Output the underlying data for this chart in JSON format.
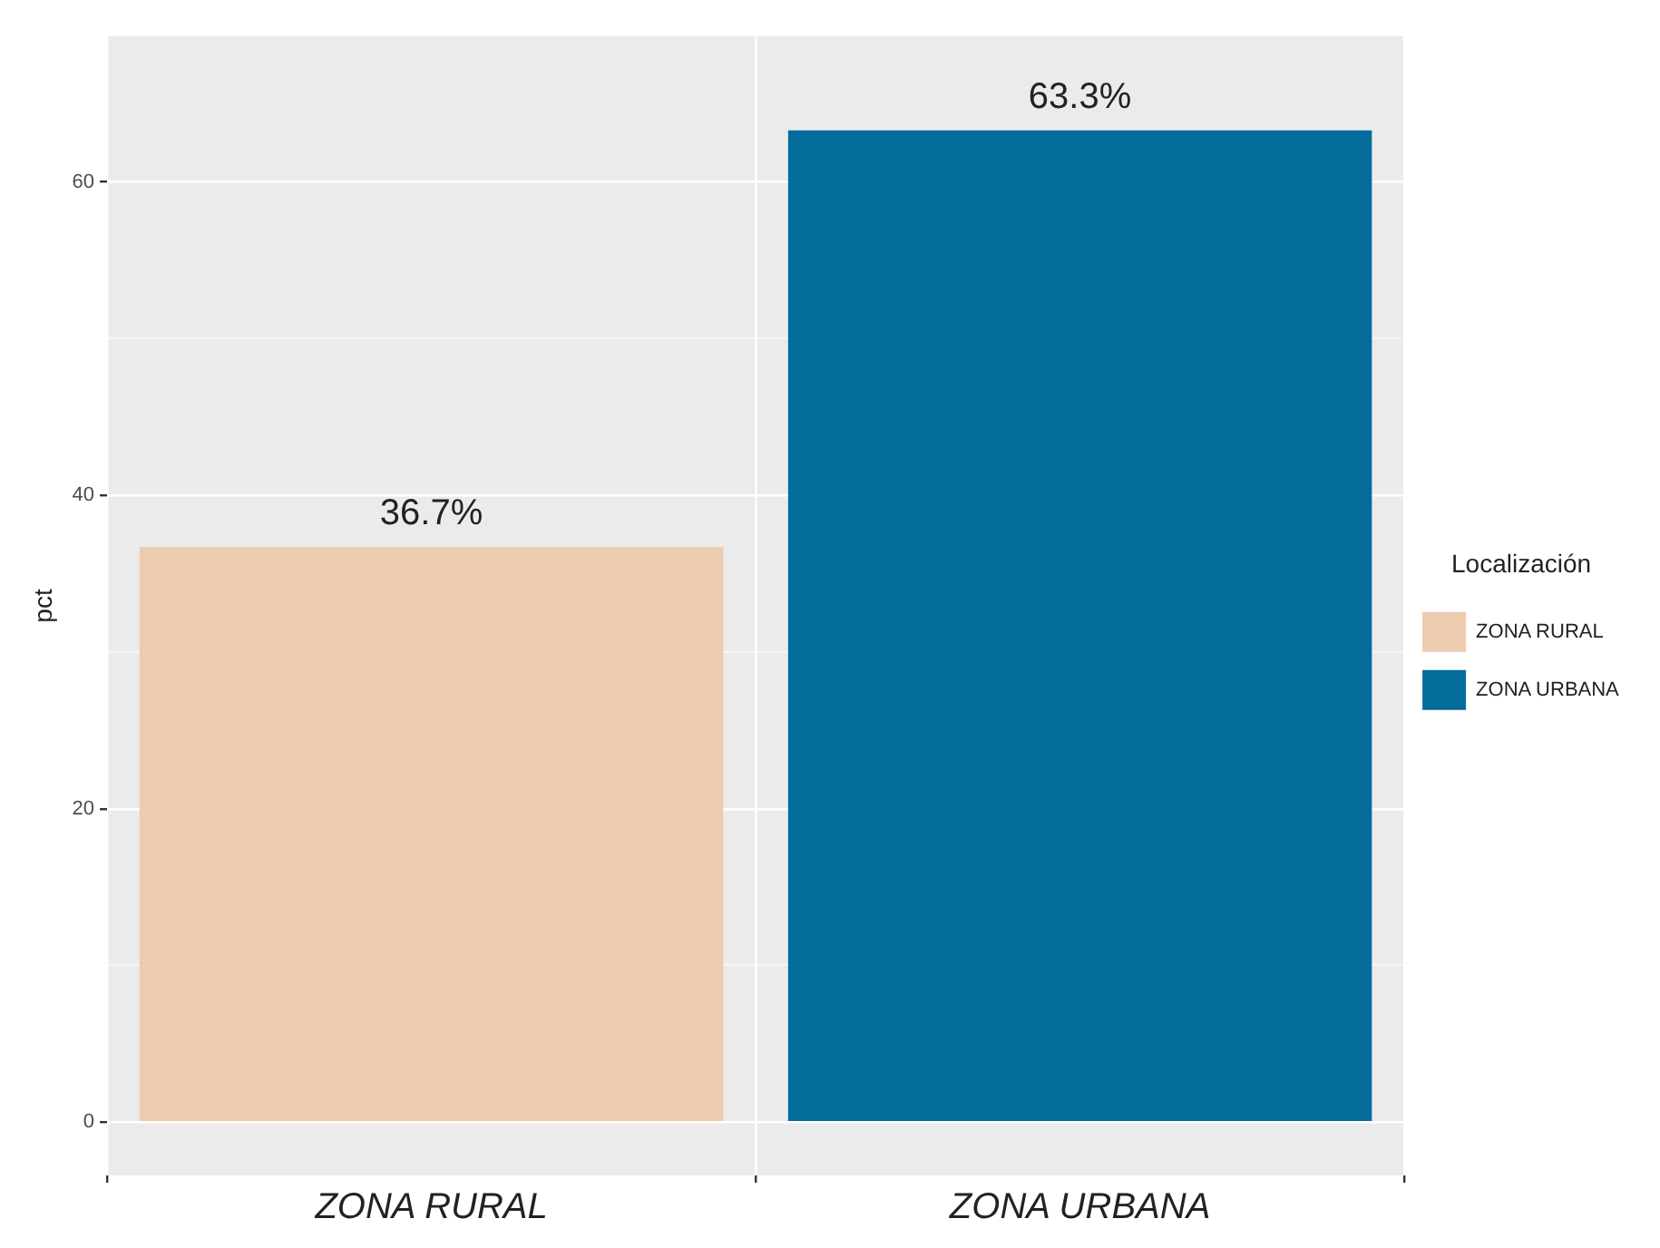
{
  "chart_data": {
    "type": "bar",
    "ylabel": "pct",
    "legend_title": "Localización",
    "categories": [
      "ZONA RURAL",
      "ZONA URBANA"
    ],
    "series": [
      {
        "name": "ZONA RURAL",
        "color": "#edcbae",
        "values": [
          36.7,
          null
        ],
        "value_labels": [
          "36.7%",
          null
        ]
      },
      {
        "name": "ZONA URBANA",
        "color": "#046c9a",
        "values": [
          null,
          63.3
        ],
        "value_labels": [
          null,
          "63.3%"
        ]
      }
    ],
    "ylim": [
      -3.4,
      69.3
    ],
    "yticks": [
      0,
      {
        "value": 10,
        "label": null
      },
      20,
      {
        "value": 30,
        "label": null
      },
      40,
      {
        "value": 50,
        "label": null
      },
      60
    ],
    "grid": true,
    "legend": "right"
  }
}
